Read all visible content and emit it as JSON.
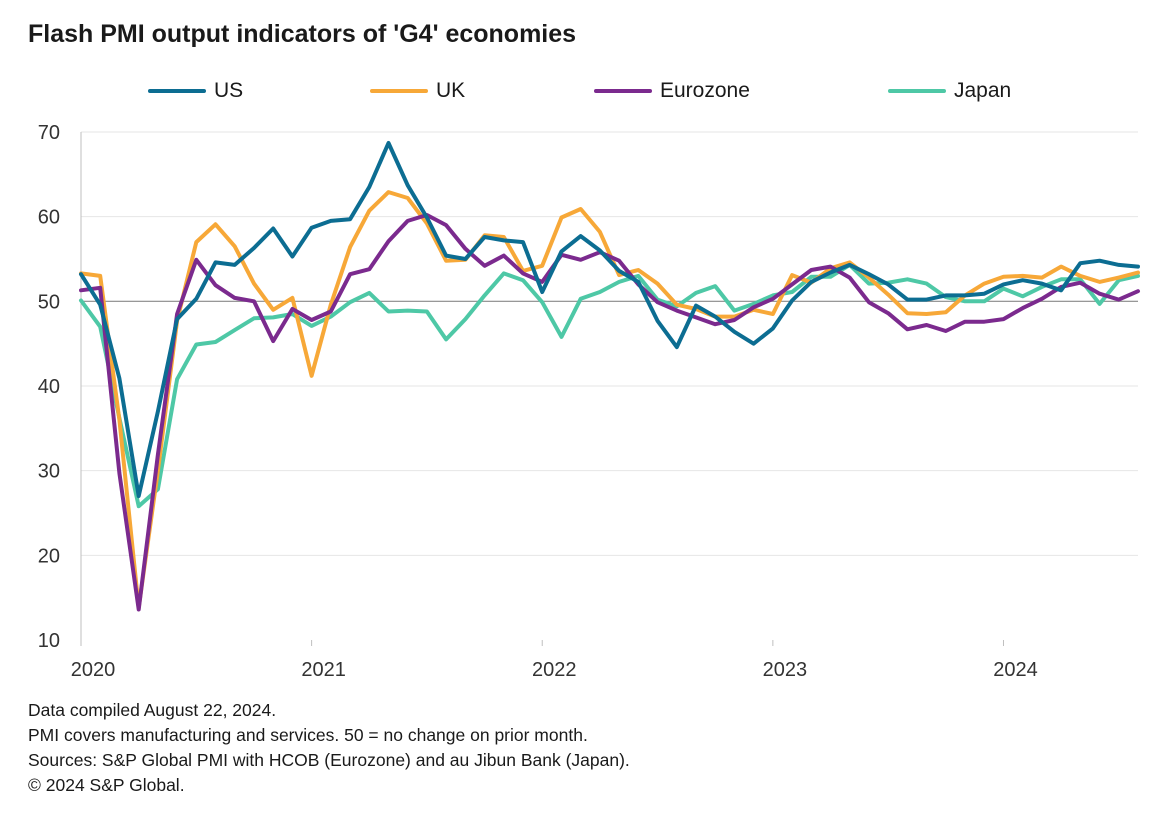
{
  "chart_data": {
    "type": "line",
    "title": "Flash PMI output indicators of 'G4' economies",
    "xlabel": "",
    "ylabel": "",
    "ylim": [
      10,
      70
    ],
    "yticks": [
      10,
      20,
      30,
      40,
      50,
      60,
      70
    ],
    "xlim": [
      "2020-01",
      "2024-08"
    ],
    "xticks": [
      "2020",
      "2021",
      "2022",
      "2023",
      "2024"
    ],
    "reference_line": 50,
    "grid": "horizontal",
    "legend_position": "top",
    "months": [
      "2020-01",
      "2020-02",
      "2020-03",
      "2020-04",
      "2020-05",
      "2020-06",
      "2020-07",
      "2020-08",
      "2020-09",
      "2020-10",
      "2020-11",
      "2020-12",
      "2021-01",
      "2021-02",
      "2021-03",
      "2021-04",
      "2021-05",
      "2021-06",
      "2021-07",
      "2021-08",
      "2021-09",
      "2021-10",
      "2021-11",
      "2021-12",
      "2022-01",
      "2022-02",
      "2022-03",
      "2022-04",
      "2022-05",
      "2022-06",
      "2022-07",
      "2022-08",
      "2022-09",
      "2022-10",
      "2022-11",
      "2022-12",
      "2023-01",
      "2023-02",
      "2023-03",
      "2023-04",
      "2023-05",
      "2023-06",
      "2023-07",
      "2023-08",
      "2023-09",
      "2023-10",
      "2023-11",
      "2023-12",
      "2024-01",
      "2024-02",
      "2024-03",
      "2024-04",
      "2024-05",
      "2024-06",
      "2024-07",
      "2024-08"
    ],
    "series": [
      {
        "name": "US",
        "color": "#0c6d92",
        "values": [
          53.2,
          49.6,
          40.9,
          27.0,
          37.0,
          47.9,
          50.3,
          54.6,
          54.3,
          56.3,
          58.6,
          55.3,
          58.7,
          59.5,
          59.7,
          63.5,
          68.7,
          63.7,
          59.9,
          55.4,
          55.0,
          57.6,
          57.2,
          57.0,
          51.1,
          55.9,
          57.7,
          56.0,
          53.6,
          52.3,
          47.7,
          44.6,
          49.5,
          48.2,
          46.4,
          45.0,
          46.8,
          50.1,
          52.3,
          53.4,
          54.3,
          53.2,
          52.0,
          50.2,
          50.2,
          50.7,
          50.7,
          50.9,
          52.0,
          52.5,
          52.1,
          51.3,
          54.5,
          54.8,
          54.3,
          54.1
        ]
      },
      {
        "name": "UK",
        "color": "#f7a838",
        "values": [
          53.3,
          53.0,
          36.0,
          13.8,
          30.0,
          47.7,
          57.0,
          59.1,
          56.5,
          52.1,
          49.0,
          50.4,
          41.2,
          49.6,
          56.4,
          60.7,
          62.9,
          62.2,
          59.2,
          54.8,
          54.9,
          57.8,
          57.6,
          53.6,
          54.2,
          59.9,
          60.9,
          58.2,
          53.1,
          53.7,
          52.1,
          49.6,
          49.1,
          48.2,
          48.2,
          49.0,
          48.5,
          53.1,
          52.2,
          53.9,
          54.6,
          52.8,
          50.8,
          48.6,
          48.5,
          48.7,
          50.7,
          52.1,
          52.9,
          53.0,
          52.8,
          54.1,
          53.0,
          52.3,
          52.8,
          53.4
        ]
      },
      {
        "name": "Eurozone",
        "color": "#7b2a8e",
        "values": [
          51.3,
          51.6,
          29.7,
          13.6,
          31.9,
          48.5,
          54.9,
          51.9,
          50.4,
          50.0,
          45.3,
          49.1,
          47.8,
          48.8,
          53.2,
          53.8,
          57.1,
          59.5,
          60.2,
          59.0,
          56.2,
          54.2,
          55.4,
          53.3,
          52.3,
          55.5,
          54.9,
          55.8,
          54.8,
          52.0,
          49.9,
          48.9,
          48.1,
          47.3,
          47.8,
          49.3,
          50.3,
          52.0,
          53.7,
          54.1,
          52.8,
          49.9,
          48.6,
          46.7,
          47.2,
          46.5,
          47.6,
          47.6,
          47.9,
          49.2,
          50.3,
          51.7,
          52.2,
          50.9,
          50.2,
          51.2
        ]
      },
      {
        "name": "Japan",
        "color": "#4ec8a6",
        "values": [
          50.1,
          47.0,
          36.2,
          25.8,
          27.8,
          40.8,
          44.9,
          45.2,
          46.6,
          48.0,
          48.1,
          48.5,
          47.1,
          48.2,
          49.9,
          51.0,
          48.8,
          48.9,
          48.8,
          45.5,
          47.9,
          50.7,
          53.3,
          52.5,
          49.9,
          45.8,
          50.3,
          51.1,
          52.3,
          53.0,
          50.2,
          49.4,
          51.0,
          51.8,
          48.9,
          49.7,
          50.7,
          51.1,
          52.9,
          52.9,
          54.3,
          52.1,
          52.2,
          52.6,
          52.1,
          50.5,
          50.0,
          50.0,
          51.5,
          50.6,
          51.7,
          52.6,
          52.6,
          49.7,
          52.5,
          53.0
        ]
      }
    ]
  },
  "notes": [
    "Data compiled August 22, 2024.",
    "PMI covers manufacturing and services. 50 = no change on prior month.",
    "Sources: S&P Global PMI with HCOB (Eurozone) and au Jibun Bank (Japan).",
    "© 2024 S&P Global."
  ]
}
